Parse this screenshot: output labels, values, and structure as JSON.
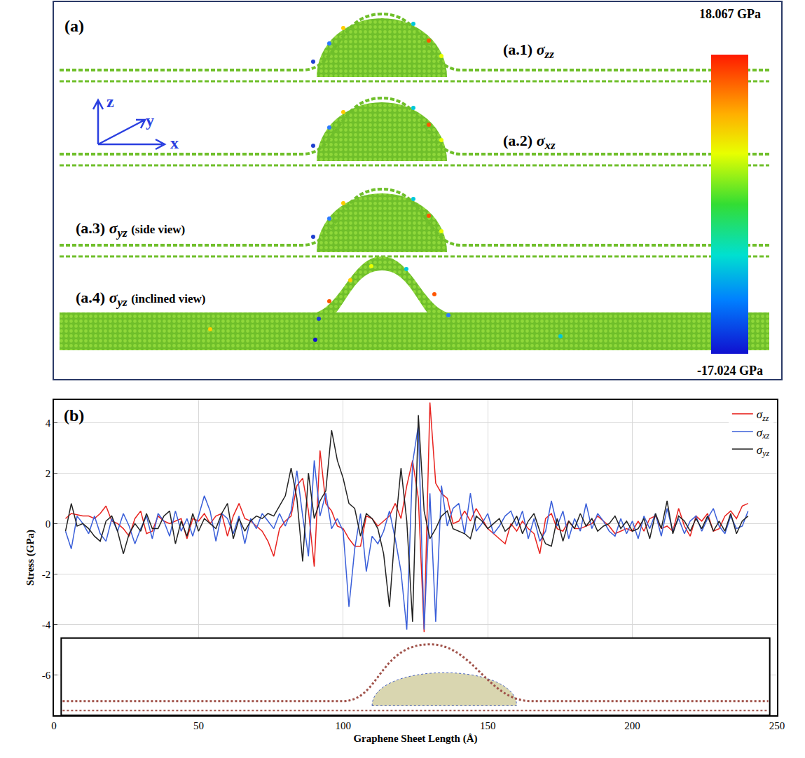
{
  "chart_data": {
    "type": "line",
    "annotations": [
      "(b)"
    ],
    "x_label": "Graphene Sheet Length (Å)",
    "y_label": "Stress (GPa)",
    "xlim": [
      0,
      250
    ],
    "xticks": [
      0,
      50,
      100,
      150,
      200,
      250
    ],
    "ylim": [
      -7.6,
      4.9
    ],
    "yticks": [
      -6,
      -4,
      -2,
      0,
      2,
      4
    ],
    "grid": true,
    "legend": "top right",
    "x": [
      4,
      6,
      8,
      10,
      12,
      14,
      16,
      18,
      20,
      22,
      24,
      26,
      28,
      30,
      32,
      34,
      36,
      38,
      40,
      42,
      44,
      46,
      48,
      50,
      52,
      54,
      56,
      58,
      60,
      62,
      64,
      66,
      68,
      70,
      72,
      74,
      76,
      78,
      80,
      82,
      84,
      86,
      88,
      90,
      92,
      94,
      96,
      98,
      100,
      102,
      104,
      106,
      108,
      110,
      112,
      114,
      116,
      118,
      120,
      122,
      124,
      126,
      128,
      130,
      132,
      134,
      136,
      138,
      140,
      142,
      144,
      146,
      148,
      150,
      152,
      154,
      156,
      158,
      160,
      162,
      164,
      166,
      168,
      170,
      172,
      174,
      176,
      178,
      180,
      182,
      184,
      186,
      188,
      190,
      192,
      194,
      196,
      198,
      200,
      202,
      204,
      206,
      208,
      210,
      212,
      214,
      216,
      218,
      220,
      222,
      224,
      226,
      228,
      230,
      232,
      234,
      236,
      238,
      240
    ],
    "series": [
      {
        "name": "σzz",
        "color": "#e8231f",
        "values": [
          0.2,
          0.4,
          0.35,
          0.3,
          0.3,
          0.2,
          0.4,
          0.7,
          0.1,
          0.0,
          -0.2,
          -0.5,
          0.2,
          0.5,
          -0.4,
          -0.3,
          0.3,
          0.1,
          0.0,
          0.1,
          0.2,
          -0.6,
          0.2,
          0.1,
          0.4,
          0.0,
          0.3,
          0.4,
          -0.5,
          0.3,
          0.8,
          0.2,
          0.1,
          -0.1,
          -0.3,
          -0.7,
          -1.3,
          -0.2,
          0.1,
          0.3,
          1.5,
          1.8,
          0.5,
          -1.7,
          2.9,
          0.8,
          0.5,
          -0.1,
          -0.2,
          -0.6,
          -0.9,
          -0.9,
          0.3,
          0.2,
          -0.1,
          0.1,
          0.3,
          0.8,
          0.2,
          1.5,
          2.5,
          1.0,
          -4.3,
          4.8,
          1.6,
          1.2,
          1.0,
          0.0,
          0.1,
          0.5,
          0.1,
          0.6,
          0.2,
          -0.2,
          -0.4,
          -0.6,
          -0.8,
          0.0,
          -0.3,
          0.1,
          -0.2,
          -0.4,
          -1.2,
          0.2,
          0.4,
          -0.2,
          -0.3,
          0.1,
          -0.2,
          -0.2,
          -0.1,
          0.0,
          0.3,
          0.1,
          -0.1,
          -0.4,
          -0.3,
          -0.2,
          -0.3,
          0.1,
          -0.3,
          0.2,
          0.3,
          -0.2,
          -0.1,
          -0.3,
          0.6,
          -0.1,
          -0.5,
          0.3,
          0.1,
          0.4,
          -0.3,
          -0.2,
          0.3,
          0.5,
          0.2,
          0.7,
          0.8
        ]
      },
      {
        "name": "σxz",
        "color": "#3a5fd9",
        "values": [
          -0.3,
          -1.0,
          0.3,
          0.0,
          -0.4,
          0.3,
          -0.4,
          -0.7,
          0.2,
          -0.3,
          0.4,
          -0.1,
          -0.8,
          -0.2,
          0.3,
          -0.6,
          0.4,
          0.1,
          -0.5,
          0.5,
          -0.3,
          0.2,
          -0.5,
          0.3,
          1.1,
          0.5,
          -0.7,
          0.4,
          0.2,
          -0.4,
          0.3,
          -0.8,
          0.2,
          -0.2,
          0.4,
          0.1,
          -0.2,
          0.4,
          -0.1,
          0.5,
          2.1,
          0.3,
          -1.3,
          2.5,
          0.3,
          1.2,
          -0.2,
          0.2,
          -0.3,
          -3.3,
          -1.0,
          0.4,
          -1.9,
          -0.5,
          -0.8,
          -0.3,
          0.5,
          -0.6,
          -1.9,
          -4.2,
          2.4,
          3.9,
          -4.2,
          1.2,
          -3.9,
          1.5,
          -0.1,
          0.6,
          0.8,
          -0.4,
          1.2,
          -0.3,
          0.0,
          0.4,
          -0.4,
          -0.1,
          0.3,
          0.5,
          -0.1,
          0.5,
          -0.6,
          0.2,
          -0.7,
          -0.3,
          0.9,
          -0.1,
          0.5,
          -0.6,
          0.2,
          -0.3,
          0.8,
          -0.2,
          0.4,
          0.1,
          -0.3,
          -0.5,
          0.2,
          -0.4,
          0.1,
          -0.6,
          0.3,
          -0.2,
          0.4,
          -0.5,
          0.6,
          -0.3,
          0.2,
          -0.4,
          0.1,
          0.3,
          -0.3,
          0.2,
          0.6,
          -0.1,
          -0.4,
          0.3,
          -0.2,
          -0.1,
          0.5
        ]
      },
      {
        "name": "σyz",
        "color": "#222222",
        "values": [
          -0.3,
          0.8,
          -0.1,
          0.0,
          -0.2,
          -0.5,
          -0.7,
          0.1,
          0.3,
          -0.3,
          -1.2,
          -0.4,
          0.0,
          -0.3,
          0.4,
          -0.2,
          -0.2,
          0.3,
          0.5,
          -0.8,
          0.1,
          -0.5,
          0.4,
          -0.3,
          0.2,
          0.0,
          -0.2,
          0.4,
          0.8,
          -0.6,
          0.2,
          -0.3,
          0.1,
          0.3,
          0.2,
          0.4,
          0.3,
          0.7,
          1.1,
          2.2,
          1.0,
          -1.5,
          2.0,
          0.2,
          0.9,
          1.3,
          3.7,
          2.5,
          1.8,
          0.8,
          0.6,
          -0.5,
          0.4,
          0.2,
          -0.2,
          -1.2,
          -3.3,
          -0.2,
          2.2,
          0.1,
          -3.9,
          4.3,
          0.5,
          -0.6,
          -0.2,
          0.3,
          0.5,
          -0.2,
          -0.3,
          -0.4,
          -0.6,
          0.3,
          0.1,
          -0.2,
          0.0,
          0.2,
          -0.3,
          -0.1,
          0.3,
          -0.4,
          0.1,
          0.4,
          -0.3,
          -0.8,
          -0.9,
          0.2,
          -0.7,
          0.1,
          -0.2,
          0.4,
          -0.1,
          0.2,
          -0.3,
          -0.1,
          0.0,
          0.3,
          -0.2,
          0.1,
          -0.3,
          -0.2,
          0.2,
          -0.6,
          0.4,
          -0.2,
          0.9,
          -0.4,
          0.3,
          0.1,
          -0.3,
          0.2,
          -0.2,
          0.3,
          -0.3,
          0.1,
          -0.3,
          0.4,
          -0.4,
          0.1,
          0.3
        ]
      }
    ]
  },
  "panel_a": {
    "label": "(a)",
    "axes": [
      "z",
      "y",
      "x"
    ],
    "rows": [
      {
        "label": "(a.1)",
        "symbol": "σzz"
      },
      {
        "label": "(a.2)",
        "symbol": "σxz"
      },
      {
        "label": "(a.3)",
        "symbol": "σyz",
        "view": "(side view)"
      },
      {
        "label": "(a.4)",
        "symbol": "σyz",
        "view": "(inclined view)"
      }
    ],
    "colorbar": {
      "range": [
        -17.024,
        18.067
      ],
      "unit": "GPa"
    }
  }
}
